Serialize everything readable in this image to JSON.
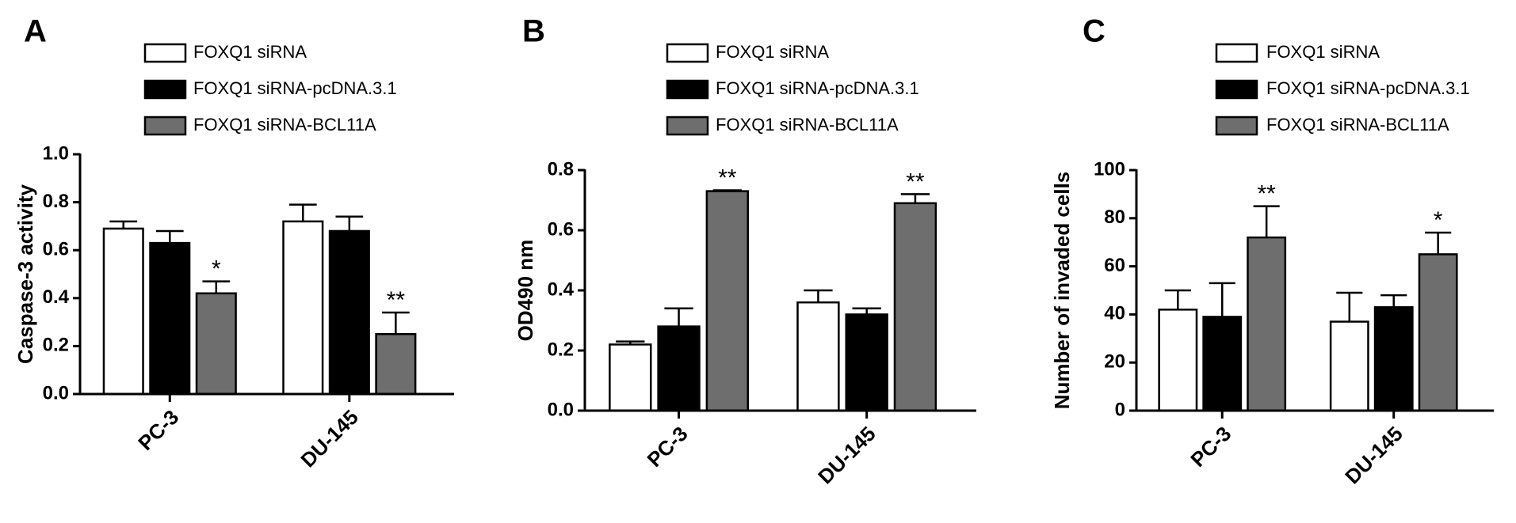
{
  "chart_data": [
    {
      "type": "bar",
      "label": "A",
      "ylabel": "Caspase-3 activity",
      "categories": [
        "PC-3",
        "DU-145"
      ],
      "ylim": [
        0,
        1.0
      ],
      "yticks": [
        {
          "value": 0,
          "label": "0.0"
        },
        0.2,
        0.4,
        0.6,
        0.8,
        {
          "value": 1.0,
          "label": "1.0"
        }
      ],
      "series": [
        {
          "name": "FOXQ1 siRNA",
          "color": "#ffffff",
          "values": [
            0.69,
            0.72
          ],
          "errors": [
            0.03,
            0.07
          ]
        },
        {
          "name": "FOXQ1 siRNA-pcDNA.3.1",
          "color": "#000000",
          "values": [
            0.63,
            0.68
          ],
          "errors": [
            0.05,
            0.06
          ]
        },
        {
          "name": "FOXQ1 siRNA-BCL11A",
          "color": "#6e6e6e",
          "values": [
            0.42,
            0.25
          ],
          "errors": [
            0.05,
            0.09
          ],
          "annotations": [
            "*",
            "**"
          ]
        }
      ]
    },
    {
      "type": "bar",
      "label": "B",
      "ylabel": "OD490 nm",
      "categories": [
        "PC-3",
        "DU-145"
      ],
      "ylim": [
        0,
        0.8
      ],
      "yticks": [
        {
          "value": 0,
          "label": "0.0"
        },
        0.2,
        0.4,
        0.6,
        0.8
      ],
      "series": [
        {
          "name": "FOXQ1 siRNA",
          "color": "#ffffff",
          "values": [
            0.22,
            0.36
          ],
          "errors": [
            0.01,
            0.04
          ]
        },
        {
          "name": "FOXQ1 siRNA-pcDNA.3.1",
          "color": "#000000",
          "values": [
            0.28,
            0.32
          ],
          "errors": [
            0.06,
            0.02
          ]
        },
        {
          "name": "FOXQ1 siRNA-BCL11A",
          "color": "#6e6e6e",
          "values": [
            0.73,
            0.69
          ],
          "errors": [
            0.003,
            0.03
          ],
          "annotations": [
            "**",
            "**"
          ]
        }
      ]
    },
    {
      "type": "bar",
      "label": "C",
      "ylabel": "Number of invaded cells",
      "categories": [
        "PC-3",
        "DU-145"
      ],
      "ylim": [
        0,
        100
      ],
      "yticks": [
        0,
        20,
        40,
        60,
        80,
        100
      ],
      "series": [
        {
          "name": "FOXQ1 siRNA",
          "color": "#ffffff",
          "values": [
            42,
            37
          ],
          "errors": [
            8,
            12
          ]
        },
        {
          "name": "FOXQ1 siRNA-pcDNA.3.1",
          "color": "#000000",
          "values": [
            39,
            43
          ],
          "errors": [
            14,
            5
          ]
        },
        {
          "name": "FOXQ1 siRNA-BCL11A",
          "color": "#6e6e6e",
          "values": [
            72,
            65
          ],
          "errors": [
            13,
            9
          ],
          "annotations": [
            "**",
            "*"
          ]
        }
      ]
    }
  ]
}
